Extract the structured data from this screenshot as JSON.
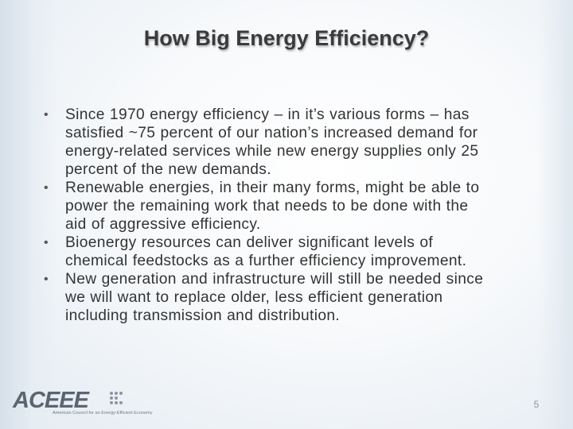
{
  "slide": {
    "title": "How Big Energy Efficiency?",
    "bullets": [
      {
        "lines": [
          "Since 1970 energy efficiency – in it’s various forms – has",
          "satisfied ~75 percent of our nation’s increased demand for",
          "energy-related services while new energy supplies only 25",
          "percent of the new demands."
        ]
      },
      {
        "lines": [
          "Renewable energies, in their many forms, might be able to",
          "power the remaining work that needs to be done with the",
          "aid of aggressive efficiency."
        ]
      },
      {
        "lines": [
          "Bioenergy resources can deliver significant levels of",
          "chemical feedstocks as a further efficiency improvement."
        ]
      },
      {
        "lines": [
          "New generation and infrastructure will still be needed since",
          "we will want to replace older, less efficient generation",
          "including transmission and distribution."
        ]
      }
    ],
    "bullet_symbol": "•",
    "page_number": "5"
  },
  "logo": {
    "wordmark": "ACEEE",
    "tagline": "American Council for an Energy-Efficient Economy"
  },
  "colors": {
    "title_text": "#3b3b3b",
    "body_text": "#333333",
    "logo_gray": "#5a6570",
    "background_edge": "#d6e0ea"
  },
  "icons": {
    "bullet": "bullet-dot-icon",
    "logo_dots": "dot-grid-icon"
  }
}
